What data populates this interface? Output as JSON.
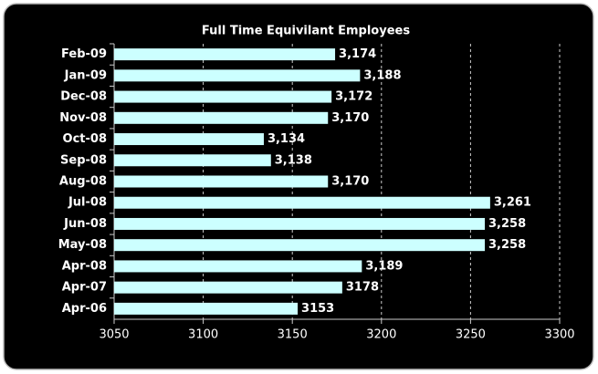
{
  "chart_data": {
    "type": "barh",
    "title": "Full Time Equivilant Employees",
    "categories": [
      "Feb-09",
      "Jan-09",
      "Dec-08",
      "Nov-08",
      "Oct-08",
      "Sep-08",
      "Aug-08",
      "Jul-08",
      "Jun-08",
      "May-08",
      "Apr-08",
      "Apr-07",
      "Apr-06"
    ],
    "values": [
      3174,
      3188,
      3172,
      3170,
      3134,
      3138,
      3170,
      3261,
      3258,
      3258,
      3189,
      3178,
      3153
    ],
    "value_labels": [
      "3,174",
      "3,188",
      "3,172",
      "3,170",
      "3,134",
      "3,138",
      "3,170",
      "3,261",
      "3,258",
      "3,258",
      "3,189",
      "3178",
      "3153"
    ],
    "color": "#ccffff",
    "xlim": [
      3050,
      3300
    ],
    "xticks": [
      3050,
      3100,
      3150,
      3200,
      3250,
      3300
    ],
    "grid": true
  }
}
